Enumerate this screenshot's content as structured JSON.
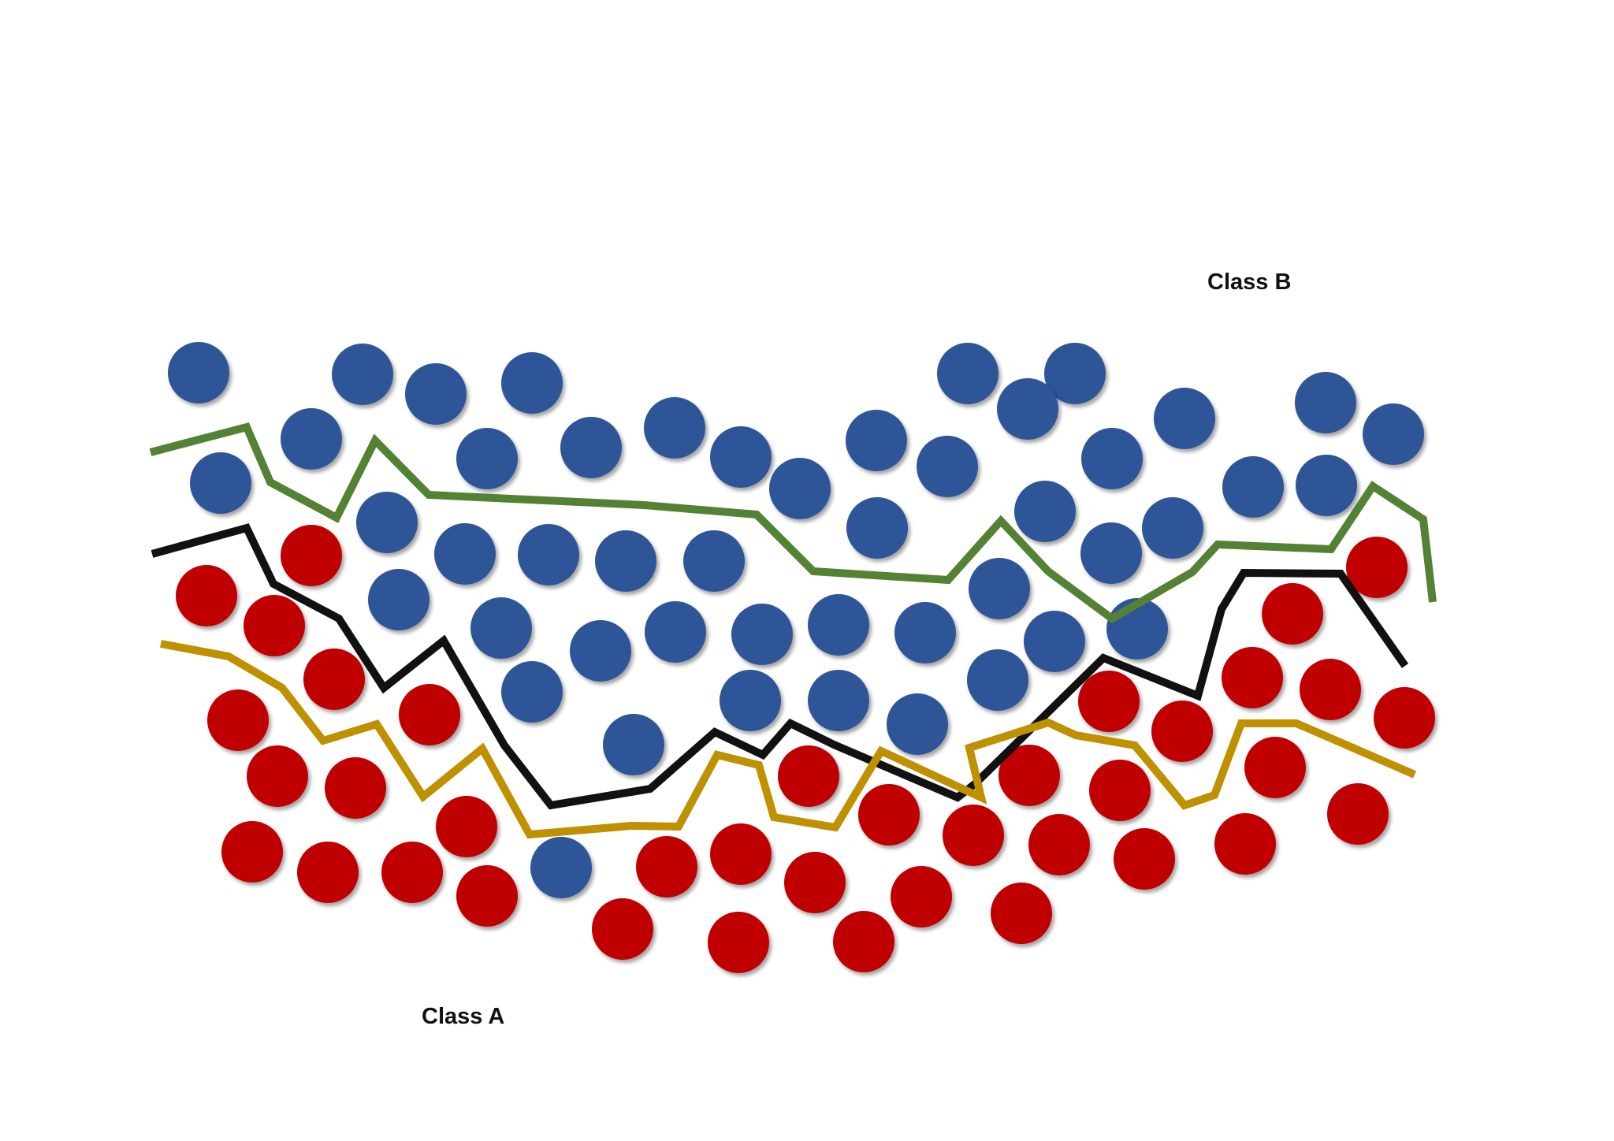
{
  "labels": {
    "class_b": "Class B",
    "class_a": "Class A"
  },
  "colors": {
    "class_a": "#c00000",
    "class_b": "#2f5597",
    "boundary_green": "#548235",
    "boundary_black": "#111111",
    "boundary_gold": "#bf9000"
  }
}
